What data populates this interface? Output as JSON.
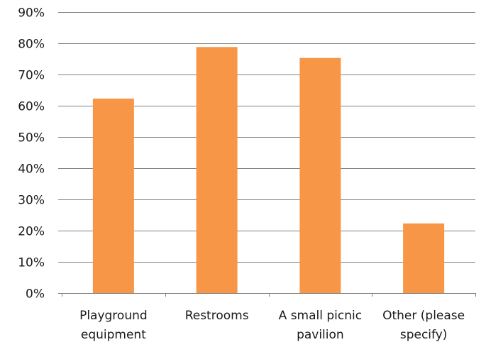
{
  "chart_data": {
    "type": "bar",
    "title": "",
    "xlabel": "",
    "ylabel": "",
    "categories": [
      [
        "Playground",
        "equipment"
      ],
      [
        "Restrooms"
      ],
      [
        "A small picnic",
        "pavilion"
      ],
      [
        "Other (please",
        "specify)"
      ]
    ],
    "values": [
      62.3,
      78.8,
      75.3,
      22.3
    ],
    "ylim": [
      0,
      90
    ],
    "yticks": [
      0,
      10,
      20,
      30,
      40,
      50,
      60,
      70,
      80,
      90
    ],
    "ytick_labels": [
      "0%",
      "10%",
      "20%",
      "30%",
      "40%",
      "50%",
      "60%",
      "70%",
      "80%",
      "90%"
    ],
    "grid": true,
    "legend": "none",
    "bar_color": "#f79646"
  }
}
